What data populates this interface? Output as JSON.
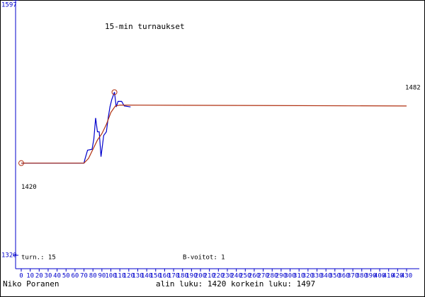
{
  "chart_data": {
    "type": "line",
    "title": "15-min turnaukset",
    "series": [
      {
        "color": "#0000cc",
        "x": [
          0,
          70,
          71,
          74,
          79,
          81,
          83,
          85,
          87,
          89,
          92,
          95,
          97,
          99,
          101,
          104,
          106,
          108,
          112,
          115,
          122
        ],
        "values": [
          1420,
          1420,
          1424,
          1434,
          1435,
          1446,
          1469,
          1454,
          1454,
          1427,
          1450,
          1454,
          1469,
          1481,
          1489,
          1497,
          1481,
          1487,
          1487,
          1482,
          1481
        ]
      },
      {
        "color": "#b03010",
        "x": [
          0,
          70,
          75,
          80,
          85,
          90,
          95,
          100,
          105,
          110,
          430
        ],
        "values": [
          1420,
          1420,
          1425,
          1435,
          1445,
          1452,
          1462,
          1475,
          1482,
          1483,
          1482
        ]
      }
    ],
    "start_value": 1420,
    "end_value": 1482,
    "xlim": [
      0,
      430
    ],
    "xticks": [
      0,
      10,
      20,
      30,
      40,
      50,
      60,
      70,
      80,
      90,
      100,
      110,
      120,
      130,
      140,
      150,
      160,
      170,
      180,
      190,
      200,
      210,
      220,
      230,
      240,
      250,
      260,
      270,
      280,
      290,
      300,
      310,
      320,
      330,
      340,
      350,
      360,
      370,
      380,
      390,
      400,
      410,
      420,
      430
    ],
    "ylim": [
      1320,
      1597
    ],
    "yticks": [
      1320,
      1597
    ],
    "stats": {
      "games": "turn.: 15",
      "wins": "B-voitot: 1"
    },
    "footer": {
      "player": "Niko Poranen",
      "range": "alin luku: 1420  korkein luku: 1497"
    }
  }
}
